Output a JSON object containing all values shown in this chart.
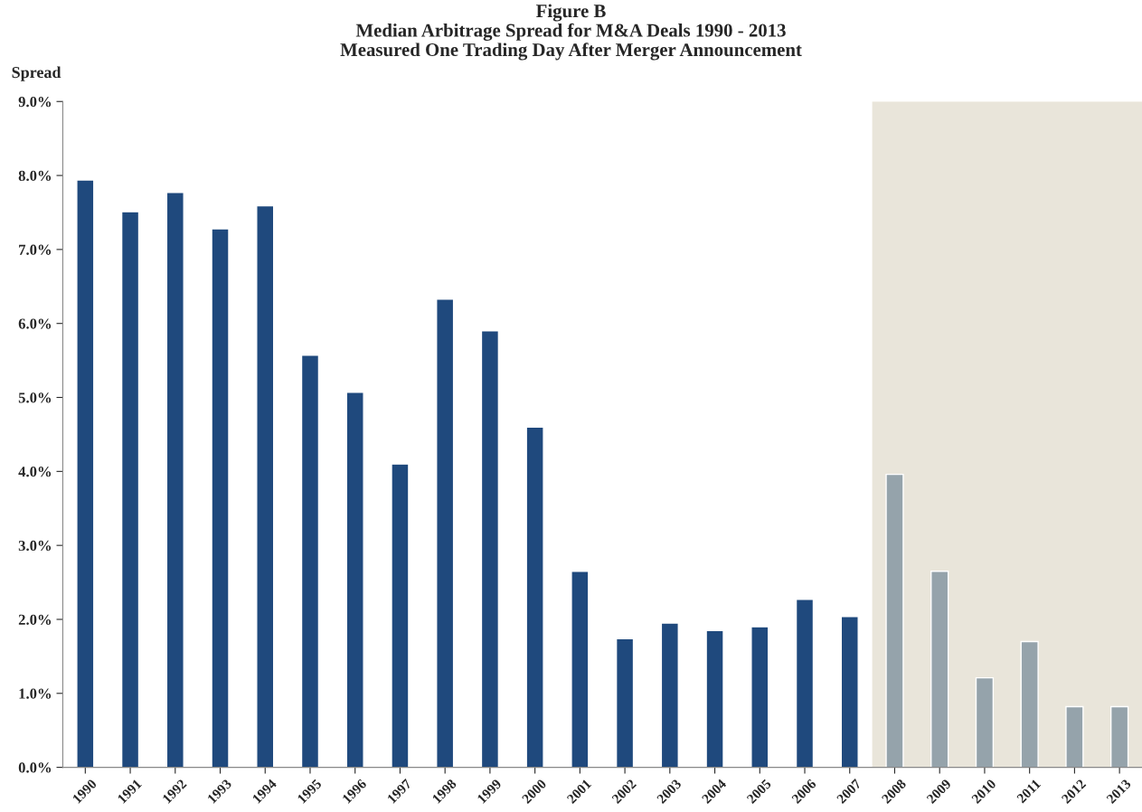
{
  "chart_data": {
    "type": "bar",
    "title": "Figure B\nMedian Arbitrage Spread for M&A Deals 1990 - 2013\nMeasured One Trading Day After Merger Announcement",
    "ylabel": "Spread",
    "categories": [
      "1990",
      "1991",
      "1992",
      "1993",
      "1994",
      "1995",
      "1996",
      "1997",
      "1998",
      "1999",
      "2000",
      "2001",
      "2002",
      "2003",
      "2004",
      "2005",
      "2006",
      "2007",
      "2008",
      "2009",
      "2010",
      "2011",
      "2012",
      "2013"
    ],
    "values": [
      7.94,
      7.51,
      7.77,
      7.28,
      7.59,
      5.57,
      5.07,
      4.1,
      6.33,
      5.9,
      4.6,
      2.65,
      1.74,
      1.95,
      1.85,
      1.9,
      2.27,
      2.04,
      3.96,
      2.65,
      1.21,
      1.7,
      0.82,
      0.82
    ],
    "colors": [
      "#1f497d",
      "#1f497d",
      "#1f497d",
      "#1f497d",
      "#1f497d",
      "#1f497d",
      "#1f497d",
      "#1f497d",
      "#1f497d",
      "#1f497d",
      "#1f497d",
      "#1f497d",
      "#1f497d",
      "#1f497d",
      "#1f497d",
      "#1f497d",
      "#1f497d",
      "#1f497d",
      "#95a3ab",
      "#95a3ab",
      "#95a3ab",
      "#95a3ab",
      "#95a3ab",
      "#95a3ab"
    ],
    "ylim": [
      0,
      9
    ],
    "yticks": [
      {
        "value": 0,
        "label": "0.0%"
      },
      {
        "value": 1,
        "label": "1.0%"
      },
      {
        "value": 2,
        "label": "2.0%"
      },
      {
        "value": 3,
        "label": "3.0%"
      },
      {
        "value": 4,
        "label": "4.0%"
      },
      {
        "value": 5,
        "label": "5.0%"
      },
      {
        "value": 6,
        "label": "6.0%"
      },
      {
        "value": 7,
        "label": "7.0%"
      },
      {
        "value": 8,
        "label": "8.0%"
      },
      {
        "value": 9,
        "label": "9.0%"
      }
    ],
    "bands": [
      {
        "axis": "x",
        "from": "2008",
        "to": "2013",
        "color": "#e9e5da"
      }
    ],
    "grid": false,
    "legend": false
  }
}
